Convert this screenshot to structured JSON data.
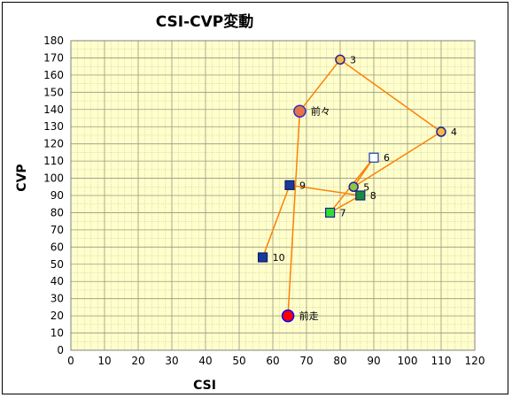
{
  "chart_data": {
    "type": "scatter",
    "title": "CSI-CVP変動",
    "xlabel": "CSI",
    "ylabel": "CVP",
    "xlim": [
      0,
      120
    ],
    "ylim": [
      0,
      180
    ],
    "xticks": [
      0,
      10,
      20,
      30,
      40,
      50,
      60,
      70,
      80,
      90,
      100,
      110,
      120
    ],
    "yticks": [
      0,
      10,
      20,
      30,
      40,
      50,
      60,
      70,
      80,
      90,
      100,
      110,
      120,
      130,
      140,
      150,
      160,
      170,
      180
    ],
    "grid": true,
    "connect_order": [
      "前走",
      "前々",
      "3",
      "4",
      "5",
      "6",
      "7",
      "8",
      "9",
      "10"
    ],
    "points": [
      {
        "label": "前走",
        "x": 64.5,
        "y": 20,
        "marker": "circle",
        "color": "#ff0000",
        "border": "#0000ff"
      },
      {
        "label": "前々",
        "x": 68,
        "y": 139,
        "marker": "circle",
        "color": "#e8734a",
        "border": "#3030c0"
      },
      {
        "label": "3",
        "x": 80,
        "y": 169,
        "marker": "circle",
        "color": "#f5b942",
        "border": "#2020a0"
      },
      {
        "label": "4",
        "x": 110,
        "y": 127,
        "marker": "circle",
        "color": "#f5b942",
        "border": "#2020a0"
      },
      {
        "label": "5",
        "x": 84,
        "y": 95,
        "marker": "circle",
        "color": "#8dc63f",
        "border": "#2020a0"
      },
      {
        "label": "6",
        "x": 90,
        "y": 112,
        "marker": "square",
        "color": "#ffffff",
        "border": "#1a3aa0"
      },
      {
        "label": "7",
        "x": 77,
        "y": 80,
        "marker": "square",
        "color": "#33dd33",
        "border": "#2020a0"
      },
      {
        "label": "8",
        "x": 86,
        "y": 90,
        "marker": "square",
        "color": "#1a8a3a",
        "border": "#0a2a7a"
      },
      {
        "label": "9",
        "x": 65,
        "y": 96,
        "marker": "square",
        "color": "#1a3a9a",
        "border": "#0a1a6a"
      },
      {
        "label": "10",
        "x": 57,
        "y": 54,
        "marker": "square",
        "color": "#1a3a9a",
        "border": "#0a1a6a"
      }
    ],
    "colors": {
      "plot_bg": "#ffffcc",
      "grid": "#c0c0a0",
      "line": "#ff8000",
      "axis": "#808080"
    }
  }
}
